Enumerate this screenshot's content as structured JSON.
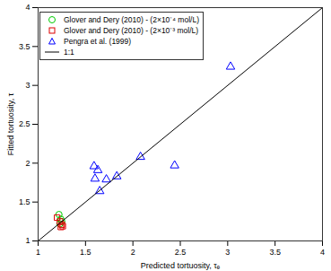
{
  "chart_data": {
    "type": "scatter",
    "x_label": "Predicted tortuosity, τₑ",
    "y_label": "Fitted tortuosity, τ",
    "xlim": [
      1,
      4
    ],
    "ylim": [
      1,
      4
    ],
    "xticks": [
      1,
      1.5,
      2,
      2.5,
      3,
      3.5,
      4
    ],
    "yticks": [
      1,
      1.5,
      2,
      2.5,
      3,
      3.5,
      4
    ],
    "legend": "upper left",
    "series": [
      {
        "name": "Glover and Dery (2010) - (2×10⁻⁴ mol/L)",
        "type": "scatter",
        "color": "#00cc00",
        "marker": "circle",
        "x": [
          1.22,
          1.24,
          1.25,
          1.23
        ],
        "values": [
          1.34,
          1.28,
          1.25,
          1.22
        ]
      },
      {
        "name": "Glover and Dery (2010) - (2×10⁻³ mol/L)",
        "type": "scatter",
        "color": "#dd0000",
        "marker": "square",
        "x": [
          1.2,
          1.23,
          1.25,
          1.26,
          1.24
        ],
        "values": [
          1.3,
          1.25,
          1.21,
          1.19,
          1.18
        ]
      },
      {
        "name": "Pengra et al. (1999)",
        "type": "scatter",
        "color": "#0000ff",
        "marker": "triangle",
        "x": [
          1.59,
          1.63,
          1.6,
          1.65,
          1.72,
          1.83,
          2.08,
          2.44,
          3.03
        ],
        "values": [
          1.96,
          1.91,
          1.8,
          1.64,
          1.79,
          1.83,
          2.08,
          1.97,
          3.24
        ]
      },
      {
        "name": "1:1",
        "type": "line",
        "color": "#000000",
        "line_style": "solid",
        "x": [
          1,
          4
        ],
        "values": [
          1,
          4
        ]
      }
    ]
  }
}
